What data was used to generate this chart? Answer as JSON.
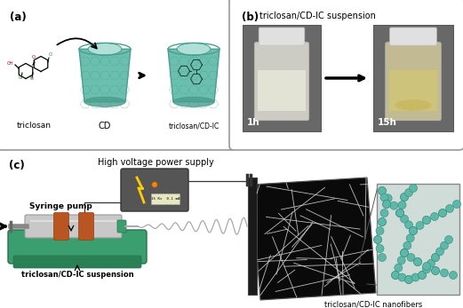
{
  "bg_color": "#ffffff",
  "panel_a_label": "(a)",
  "panel_b_label": "(b)",
  "panel_c_label": "(c)",
  "panel_b_title": "triclosan/CD-IC suspension",
  "label_triclosan": "triclosan",
  "label_cd": "CD",
  "label_triclosan_cd_ic": "triclosan/CD-IC",
  "label_1h": "1h",
  "label_15h": "15h",
  "label_syringe": "Syringe pump",
  "label_high_voltage": "High voltage power supply",
  "label_suspension": "triclosan/CD-IC suspension",
  "label_nanofibers": "triclosan/CD-IC nanofibers",
  "cd_color": "#6bbfaf",
  "cd_dark": "#4a9e8e",
  "cd_inner": "#b0e0d8",
  "cd_bottom": "#3a8878",
  "figure_width": 5.21,
  "figure_height": 3.47,
  "figure_dpi": 100
}
